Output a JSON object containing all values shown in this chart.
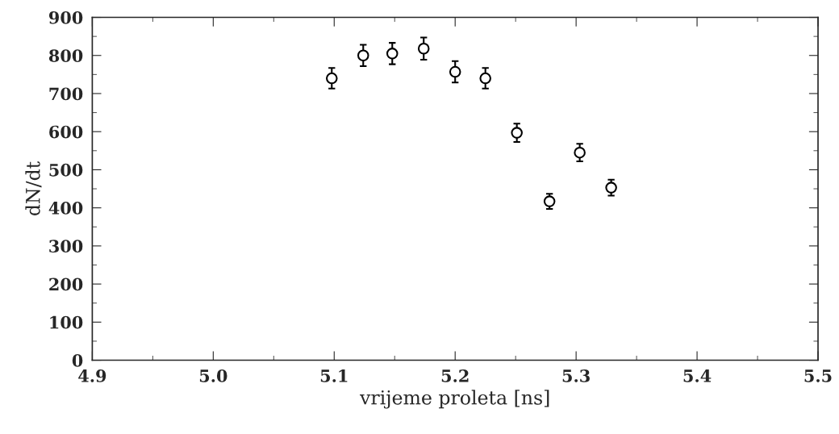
{
  "chart_data": {
    "type": "scatter",
    "xlabel": "vrijeme proleta [ns]",
    "ylabel": "dN/dt",
    "x": [
      5.098,
      5.124,
      5.148,
      5.174,
      5.2,
      5.225,
      5.251,
      5.278,
      5.303,
      5.329
    ],
    "values": [
      740,
      800,
      805,
      818,
      757,
      740,
      597,
      417,
      545,
      453
    ],
    "errors": [
      27,
      28,
      28,
      29,
      28,
      27,
      24,
      20,
      23,
      21
    ],
    "color": "#000000",
    "marker": "circle",
    "xlim": [
      4.9,
      5.5
    ],
    "xticks": [
      4.9,
      {
        "value": 5.0,
        "label": "5.0"
      },
      5.1,
      5.2,
      5.3,
      5.4,
      5.5
    ],
    "ylim": [
      0,
      900
    ],
    "yticks": [
      0,
      100,
      200,
      300,
      400,
      500,
      600,
      700,
      800,
      900
    ],
    "grid": false,
    "legend": false
  }
}
